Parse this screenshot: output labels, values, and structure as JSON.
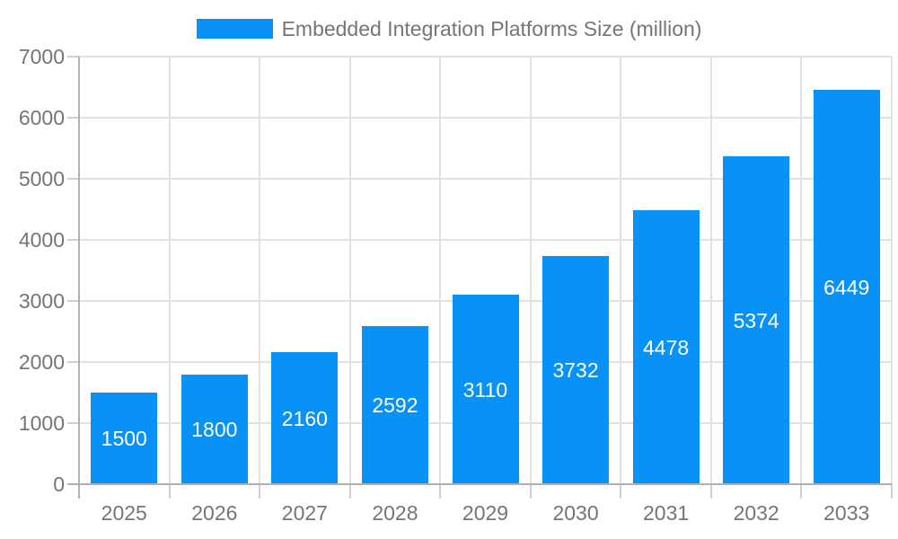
{
  "chart_data": {
    "type": "bar",
    "title": "Embedded Integration Platforms Size (million)",
    "categories": [
      "2025",
      "2026",
      "2027",
      "2028",
      "2029",
      "2030",
      "2031",
      "2032",
      "2033"
    ],
    "values": [
      1500,
      1800,
      2160,
      2592,
      3110,
      3732,
      4478,
      5374,
      6449
    ],
    "xlabel": "",
    "ylabel": "",
    "ylim": [
      0,
      7000
    ],
    "ytick_step": 1000,
    "ytick_labels": [
      "0",
      "1000",
      "2000",
      "3000",
      "4000",
      "5000",
      "6000",
      "7000"
    ],
    "legend_position": "top",
    "grid": true,
    "value_label_position": "inside-center",
    "colors": {
      "bar": "#0892f8",
      "bar_label": "#ffffff",
      "axis_text": "#757575",
      "grid_line": "#e2e2e2",
      "axis_line": "#b0b0b0",
      "tick_line": "#cfcfcf",
      "background": "#ffffff"
    }
  }
}
